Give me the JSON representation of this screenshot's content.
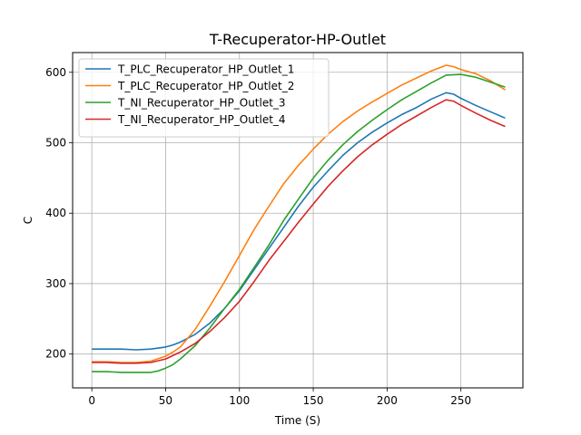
{
  "chart_data": {
    "type": "line",
    "title": "T-Recuperator-HP-Outlet",
    "xlabel": "Time (S)",
    "ylabel": "C",
    "xlim": [
      -13,
      292
    ],
    "ylim": [
      152,
      628
    ],
    "xticks": [
      0,
      50,
      100,
      150,
      200,
      250
    ],
    "yticks": [
      200,
      300,
      400,
      500,
      600
    ],
    "grid": true,
    "legend_position": "upper-left",
    "series": [
      {
        "name": "T_PLC_Recuperator_HP_Outlet_1",
        "color": "#1f77b4",
        "points": [
          [
            0,
            207
          ],
          [
            10,
            207
          ],
          [
            20,
            207
          ],
          [
            30,
            206
          ],
          [
            40,
            207
          ],
          [
            50,
            210
          ],
          [
            55,
            213
          ],
          [
            60,
            217
          ],
          [
            70,
            228
          ],
          [
            80,
            244
          ],
          [
            90,
            265
          ],
          [
            100,
            290
          ],
          [
            110,
            320
          ],
          [
            120,
            350
          ],
          [
            130,
            380
          ],
          [
            140,
            410
          ],
          [
            150,
            437
          ],
          [
            160,
            460
          ],
          [
            170,
            482
          ],
          [
            180,
            500
          ],
          [
            190,
            515
          ],
          [
            200,
            528
          ],
          [
            210,
            540
          ],
          [
            220,
            550
          ],
          [
            230,
            562
          ],
          [
            240,
            571
          ],
          [
            245,
            569
          ],
          [
            250,
            563
          ],
          [
            260,
            553
          ],
          [
            270,
            544
          ],
          [
            280,
            535
          ]
        ]
      },
      {
        "name": "T_PLC_Recuperator_HP_Outlet_2",
        "color": "#ff7f0e",
        "points": [
          [
            0,
            189
          ],
          [
            10,
            189
          ],
          [
            20,
            188
          ],
          [
            30,
            188
          ],
          [
            40,
            190
          ],
          [
            50,
            197
          ],
          [
            55,
            203
          ],
          [
            60,
            210
          ],
          [
            70,
            235
          ],
          [
            80,
            268
          ],
          [
            90,
            303
          ],
          [
            100,
            340
          ],
          [
            110,
            377
          ],
          [
            120,
            410
          ],
          [
            130,
            442
          ],
          [
            140,
            468
          ],
          [
            150,
            491
          ],
          [
            160,
            512
          ],
          [
            170,
            530
          ],
          [
            180,
            545
          ],
          [
            190,
            558
          ],
          [
            200,
            570
          ],
          [
            210,
            582
          ],
          [
            220,
            592
          ],
          [
            230,
            602
          ],
          [
            240,
            610
          ],
          [
            245,
            608
          ],
          [
            250,
            604
          ],
          [
            260,
            598
          ],
          [
            270,
            588
          ],
          [
            280,
            575
          ]
        ]
      },
      {
        "name": "T_NI_Recuperator_HP_Outlet_3",
        "color": "#2ca02c",
        "points": [
          [
            0,
            175
          ],
          [
            10,
            175
          ],
          [
            20,
            174
          ],
          [
            30,
            174
          ],
          [
            40,
            174
          ],
          [
            45,
            176
          ],
          [
            50,
            180
          ],
          [
            55,
            185
          ],
          [
            60,
            193
          ],
          [
            70,
            212
          ],
          [
            80,
            237
          ],
          [
            90,
            265
          ],
          [
            100,
            292
          ],
          [
            110,
            323
          ],
          [
            120,
            355
          ],
          [
            130,
            390
          ],
          [
            140,
            420
          ],
          [
            150,
            450
          ],
          [
            160,
            475
          ],
          [
            170,
            497
          ],
          [
            180,
            516
          ],
          [
            190,
            532
          ],
          [
            200,
            547
          ],
          [
            210,
            561
          ],
          [
            220,
            573
          ],
          [
            230,
            585
          ],
          [
            240,
            596
          ],
          [
            250,
            597
          ],
          [
            260,
            593
          ],
          [
            270,
            586
          ],
          [
            280,
            579
          ]
        ]
      },
      {
        "name": "T_NI_Recuperator_HP_Outlet_4",
        "color": "#d62728",
        "points": [
          [
            0,
            188
          ],
          [
            10,
            188
          ],
          [
            20,
            187
          ],
          [
            30,
            187
          ],
          [
            40,
            188
          ],
          [
            50,
            193
          ],
          [
            60,
            203
          ],
          [
            70,
            215
          ],
          [
            80,
            232
          ],
          [
            90,
            252
          ],
          [
            100,
            275
          ],
          [
            110,
            303
          ],
          [
            120,
            333
          ],
          [
            130,
            360
          ],
          [
            140,
            387
          ],
          [
            150,
            413
          ],
          [
            160,
            438
          ],
          [
            170,
            460
          ],
          [
            180,
            480
          ],
          [
            190,
            497
          ],
          [
            200,
            512
          ],
          [
            210,
            526
          ],
          [
            220,
            538
          ],
          [
            230,
            550
          ],
          [
            240,
            561
          ],
          [
            245,
            559
          ],
          [
            250,
            553
          ],
          [
            260,
            542
          ],
          [
            270,
            532
          ],
          [
            280,
            523
          ]
        ]
      }
    ]
  }
}
